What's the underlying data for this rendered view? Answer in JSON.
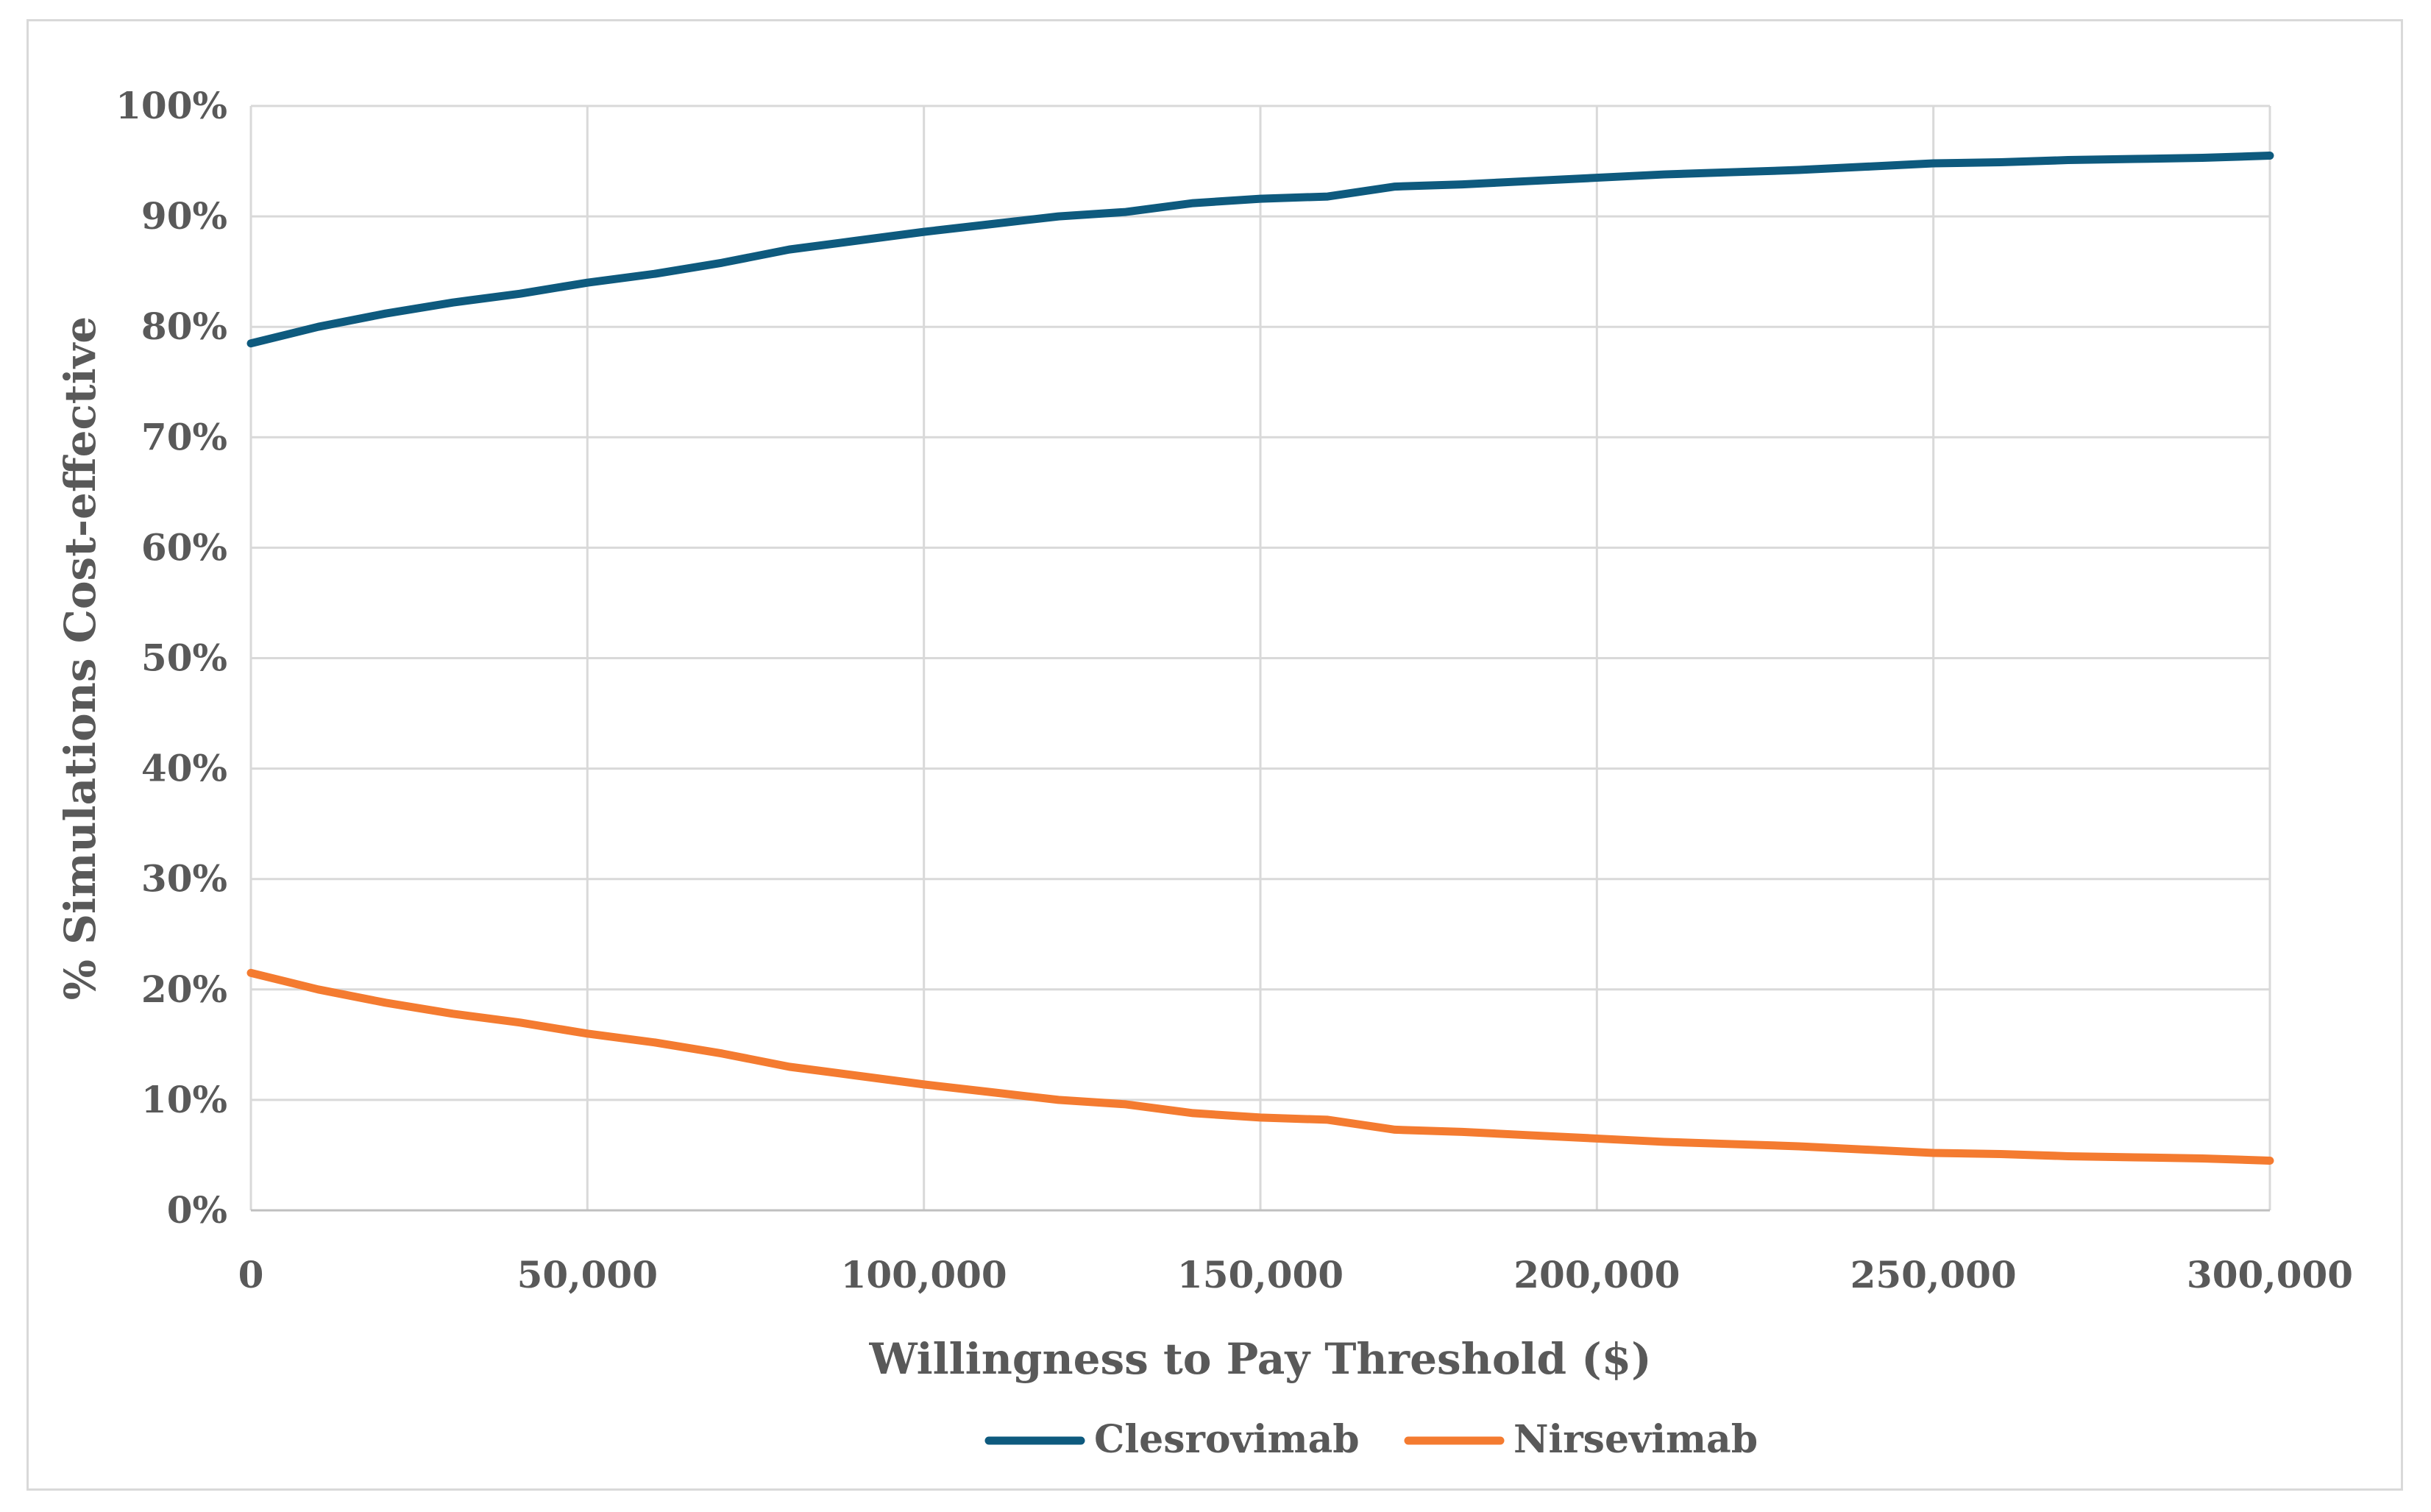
{
  "chart_data": {
    "type": "line",
    "title": "",
    "xlabel": "Willingness to Pay Threshold ($)",
    "ylabel": "% Simulations Cost-effective",
    "xlim": [
      0,
      300000
    ],
    "ylim": [
      0,
      1
    ],
    "x_ticks": [
      0,
      50000,
      100000,
      150000,
      200000,
      250000,
      300000
    ],
    "x_tick_labels": [
      "0",
      "50,000",
      "100,000",
      "150,000",
      "200,000",
      "250,000",
      "300,000"
    ],
    "y_ticks": [
      0,
      0.1,
      0.2,
      0.3,
      0.4,
      0.5,
      0.6,
      0.7,
      0.8,
      0.9,
      1.0
    ],
    "y_tick_labels": [
      "0%",
      "10%",
      "20%",
      "30%",
      "40%",
      "50%",
      "60%",
      "70%",
      "80%",
      "90%",
      "100%"
    ],
    "grid": true,
    "legend_position": "bottom",
    "x": [
      0,
      10000,
      20000,
      30000,
      40000,
      50000,
      60000,
      70000,
      80000,
      90000,
      100000,
      110000,
      120000,
      130000,
      140000,
      150000,
      160000,
      170000,
      180000,
      190000,
      200000,
      210000,
      220000,
      230000,
      240000,
      250000,
      260000,
      270000,
      280000,
      290000,
      300000
    ],
    "series": [
      {
        "name": "Clesrovimab",
        "color": "#0e5a7e",
        "values": [
          0.785,
          0.8,
          0.812,
          0.822,
          0.83,
          0.84,
          0.848,
          0.858,
          0.87,
          0.878,
          0.886,
          0.893,
          0.9,
          0.904,
          0.912,
          0.916,
          0.918,
          0.927,
          0.929,
          0.932,
          0.935,
          0.938,
          0.94,
          0.942,
          0.945,
          0.948,
          0.949,
          0.951,
          0.952,
          0.953,
          0.955
        ]
      },
      {
        "name": "Nirsevimab",
        "color": "#f47b30",
        "values": [
          0.215,
          0.2,
          0.188,
          0.178,
          0.17,
          0.16,
          0.152,
          0.142,
          0.13,
          0.122,
          0.114,
          0.107,
          0.1,
          0.096,
          0.088,
          0.084,
          0.082,
          0.073,
          0.071,
          0.068,
          0.065,
          0.062,
          0.06,
          0.058,
          0.055,
          0.052,
          0.051,
          0.049,
          0.048,
          0.047,
          0.045
        ]
      }
    ]
  }
}
